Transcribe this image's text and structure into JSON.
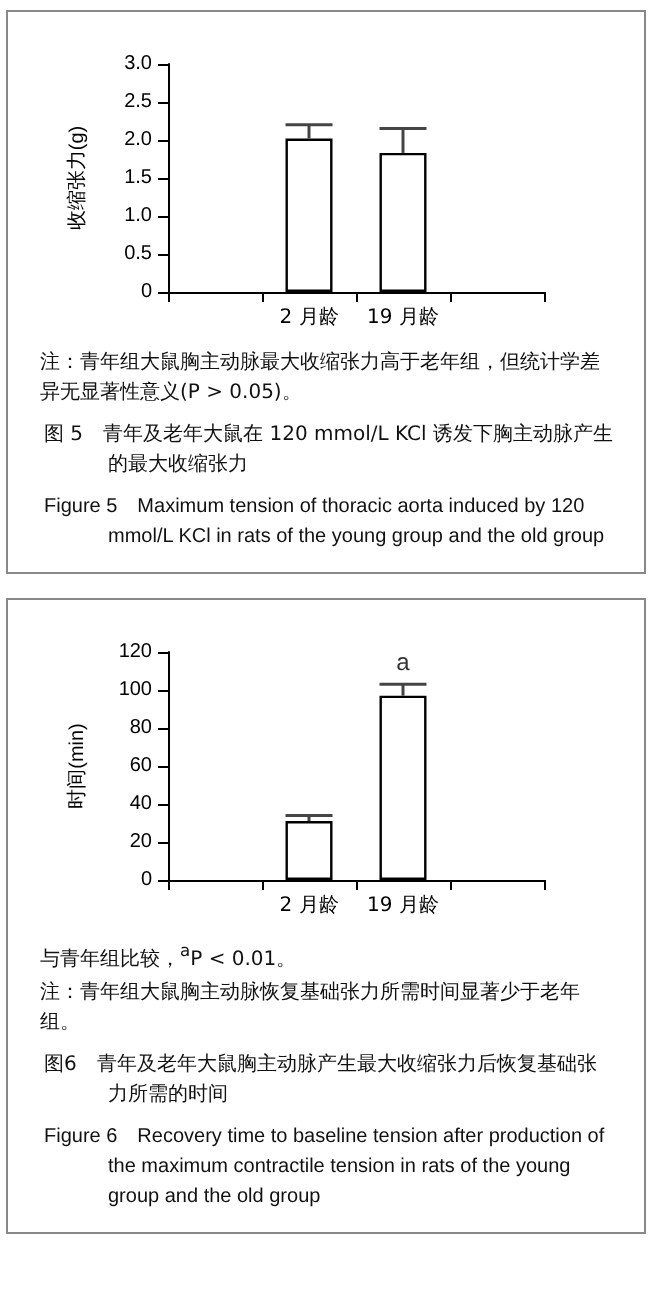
{
  "chart_data": [
    {
      "type": "bar",
      "title": "图 5　青年及老年大鼠在 120 mmol/L KCl 诱发下胸主动脉产生的最大收缩张力",
      "subtitle": "Figure 5　Maximum tension of thoracic aorta induced by 120 mmol/L KCl in rats of the young group and the old group",
      "ylabel": "收缩张力(g)",
      "annotations": [
        "注：青年组大鼠胸主动脉最大收缩张力高于老年组，但统计学差异无显著性意义(P > 0.05)。"
      ],
      "categories": [
        null,
        "2 月龄",
        "19 月龄",
        null
      ],
      "values": [
        null,
        2.02,
        1.83,
        null
      ],
      "errors": [
        null,
        [
          2.02,
          2.2
        ],
        [
          1.83,
          2.15
        ],
        null
      ],
      "color": "#ffffff",
      "ylim": [
        0,
        3
      ],
      "yticks": [
        0,
        0.5,
        {
          "value": 1,
          "label": "1.0"
        },
        1.5,
        {
          "value": 2,
          "label": "2.0"
        },
        2.5,
        {
          "value": 3,
          "label": "3.0"
        }
      ],
      "grid": false
    },
    {
      "type": "bar",
      "title": "图6　青年及老年大鼠胸主动脉产生最大收缩张力后恢复基础张力所需的时间",
      "subtitle": "Figure 6　Recovery time to baseline tension after production of the maximum contractile tension in rats of the young group and the old group",
      "ylabel": "时间(min)",
      "annotations": [
        {
          "text": "a",
          "x": "19 月龄",
          "y": 103
        },
        "与青年组比较，$^{a}$P < 0.01。",
        "注：青年组大鼠胸主动脉恢复基础张力所需时间显著少于老年组。"
      ],
      "categories": [
        null,
        "2 月龄",
        "19 月龄",
        null
      ],
      "values": [
        null,
        31,
        97,
        null
      ],
      "errors": [
        null,
        [
          31,
          34
        ],
        [
          97,
          103
        ],
        null
      ],
      "color": "#ffffff",
      "ylim": [
        0,
        120
      ],
      "yticks": [
        0,
        20,
        40,
        60,
        80,
        100,
        120
      ],
      "grid": false
    }
  ]
}
